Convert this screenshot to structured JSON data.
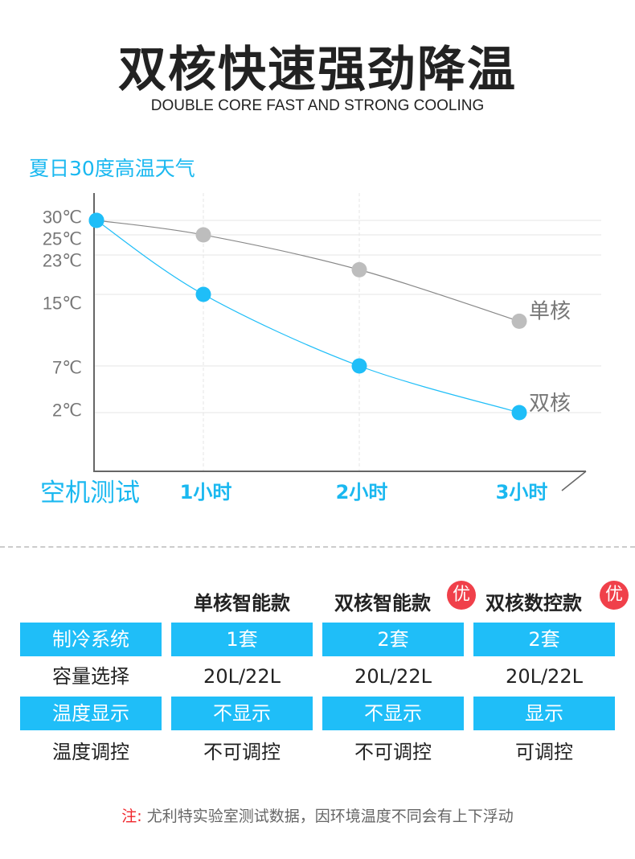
{
  "header": {
    "title": "双核快速强劲降温",
    "subtitle": "DOUBLE CORE FAST AND STRONG COOLING"
  },
  "chart_data": {
    "type": "line",
    "title": "夏日30度高温天气",
    "categories": [
      "空机测试",
      "1小时",
      "2小时",
      "3小时"
    ],
    "y_tick_labels": [
      "30℃",
      "25℃",
      "23℃",
      "15℃",
      "7℃",
      "2℃"
    ],
    "y_ticks": [
      30,
      25,
      23,
      15,
      7,
      2
    ],
    "series": [
      {
        "name": "单核",
        "color": "#bdbdbd",
        "line_color": "#888888",
        "values": [
          30,
          25,
          20,
          12
        ]
      },
      {
        "name": "双核",
        "color": "#1fbef8",
        "line_color": "#1fbef8",
        "values": [
          30,
          15,
          7,
          2
        ]
      }
    ],
    "grid": true
  },
  "table": {
    "columns": [
      "单核智能款",
      "双核智能款",
      "双核数控款"
    ],
    "badges": [
      "",
      "优",
      "优"
    ],
    "rows": [
      {
        "label": "制冷系统",
        "values": [
          "1套",
          "2套",
          "2套"
        ],
        "highlight": true
      },
      {
        "label": "容量选择",
        "values": [
          "20L/22L",
          "20L/22L",
          "20L/22L"
        ],
        "highlight": false
      },
      {
        "label": "温度显示",
        "values": [
          "不显示",
          "不显示",
          "显示"
        ],
        "highlight": true
      },
      {
        "label": "温度调控",
        "values": [
          "不可调控",
          "不可调控",
          "可调控"
        ],
        "highlight": false
      }
    ]
  },
  "note": {
    "prefix": "注:",
    "text": " 尤利特实验室测试数据，因环境温度不同会有上下浮动"
  }
}
